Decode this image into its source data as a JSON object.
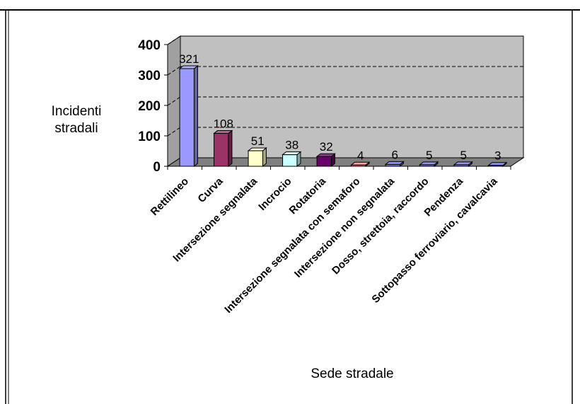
{
  "chart_data": {
    "type": "bar",
    "title": "",
    "xlabel": "Sede stradale",
    "ylabel_line1": "Incidenti",
    "ylabel_line2": "stradali",
    "ylim": [
      0,
      400
    ],
    "yticks": [
      0,
      100,
      200,
      300,
      400
    ],
    "grid": "horizontal dashed",
    "legend": "none",
    "categories": [
      "Rettilineo",
      "Curva",
      "Intersezione segnalata",
      "Incrocio",
      "Rotatoria",
      "Intersezione segnalata con semaforo",
      "Intersezione non segnalata",
      "Dosso, strettoia,  raccordo",
      "Pendenza",
      "Sottopasso ferroviario, cavalcavia"
    ],
    "values": [
      321,
      108,
      51,
      38,
      32,
      4,
      6,
      5,
      5,
      3
    ],
    "colors": [
      "#9999FF",
      "#993366",
      "#FFFFCC",
      "#CCFFFF",
      "#660066",
      "#FF8080",
      "#6E6EEB",
      "#6E6EEB",
      "#6E6EEB",
      "#6E6EEB"
    ],
    "wall_color": "#C0C0C0"
  }
}
